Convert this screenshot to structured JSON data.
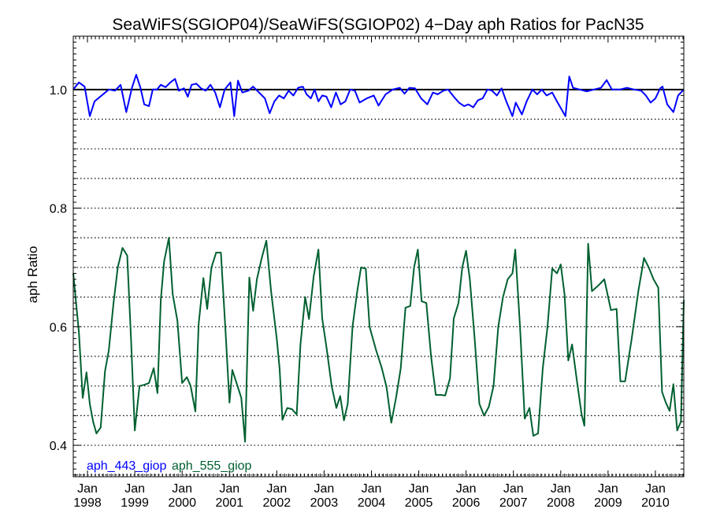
{
  "chart_data": {
    "type": "line",
    "title": "SeaWiFS(SGIOP04)/SeaWiFS(SGIOP02) 4−Day aph Ratios for PacN35",
    "xlabel": "",
    "ylabel": "aph Ratio",
    "xlim": [
      1997.7,
      2010.6
    ],
    "ylim": [
      0.347,
      1.09
    ],
    "y_ticks": [
      0.4,
      0.6,
      0.8,
      1.0
    ],
    "y_tick_labels": [
      "0.4",
      "0.6",
      "0.8",
      "1.0"
    ],
    "y_gridlines": [
      0.35,
      0.4,
      0.45,
      0.5,
      0.55,
      0.6,
      0.65,
      0.7,
      0.75,
      0.8,
      0.85,
      0.9,
      0.95
    ],
    "grid": "dotted horizontal",
    "reference_line": 1.0,
    "x_ticks": [
      {
        "x": 1998.0,
        "month": "Jan",
        "year": "1998"
      },
      {
        "x": 1999.0,
        "month": "Jan",
        "year": "1999"
      },
      {
        "x": 2000.0,
        "month": "Jan",
        "year": "2000"
      },
      {
        "x": 2001.0,
        "month": "Jan",
        "year": "2001"
      },
      {
        "x": 2002.0,
        "month": "Jan",
        "year": "2002"
      },
      {
        "x": 2003.0,
        "month": "Jan",
        "year": "2003"
      },
      {
        "x": 2004.0,
        "month": "Jan",
        "year": "2004"
      },
      {
        "x": 2005.0,
        "month": "Jan",
        "year": "2005"
      },
      {
        "x": 2006.0,
        "month": "Jan",
        "year": "2006"
      },
      {
        "x": 2007.0,
        "month": "Jan",
        "year": "2007"
      },
      {
        "x": 2008.0,
        "month": "Jan",
        "year": "2008"
      },
      {
        "x": 2009.0,
        "month": "Jan",
        "year": "2009"
      },
      {
        "x": 2010.0,
        "month": "Jan",
        "year": "2010"
      }
    ],
    "legend_placement": "bottom-left",
    "series": [
      {
        "name": "aph_443_giop",
        "color": "#0000ff",
        "points": [
          [
            1997.7,
            1.0
          ],
          [
            1997.82,
            1.012
          ],
          [
            1997.94,
            1.005
          ],
          [
            1998.05,
            0.955
          ],
          [
            1998.15,
            0.98
          ],
          [
            1998.3,
            0.99
          ],
          [
            1998.45,
            1.0
          ],
          [
            1998.58,
            0.998
          ],
          [
            1998.7,
            1.008
          ],
          [
            1998.82,
            0.962
          ],
          [
            1998.94,
            1.003
          ],
          [
            1999.03,
            1.025
          ],
          [
            1999.12,
            1.003
          ],
          [
            1999.2,
            0.975
          ],
          [
            1999.3,
            0.972
          ],
          [
            1999.38,
            1.0
          ],
          [
            1999.47,
            1.0
          ],
          [
            1999.55,
            1.008
          ],
          [
            1999.65,
            1.004
          ],
          [
            1999.75,
            1.012
          ],
          [
            1999.85,
            1.018
          ],
          [
            1999.93,
            0.998
          ],
          [
            2000.04,
            1.002
          ],
          [
            2000.12,
            0.988
          ],
          [
            2000.2,
            1.008
          ],
          [
            2000.3,
            1.01
          ],
          [
            2000.4,
            1.002
          ],
          [
            2000.5,
            0.998
          ],
          [
            2000.6,
            1.008
          ],
          [
            2000.7,
            0.995
          ],
          [
            2000.8,
            0.97
          ],
          [
            2000.9,
            1.0
          ],
          [
            2001.02,
            1.012
          ],
          [
            2001.1,
            0.955
          ],
          [
            2001.18,
            1.015
          ],
          [
            2001.27,
            0.995
          ],
          [
            2001.4,
            0.998
          ],
          [
            2001.5,
            1.005
          ],
          [
            2001.65,
            0.993
          ],
          [
            2001.75,
            0.985
          ],
          [
            2001.85,
            0.96
          ],
          [
            2001.95,
            0.98
          ],
          [
            2002.05,
            0.99
          ],
          [
            2002.15,
            0.985
          ],
          [
            2002.25,
            0.998
          ],
          [
            2002.35,
            0.99
          ],
          [
            2002.45,
            1.003
          ],
          [
            2002.55,
            1.005
          ],
          [
            2002.63,
            0.992
          ],
          [
            2002.72,
            0.985
          ],
          [
            2002.8,
            1.0
          ],
          [
            2002.88,
            0.98
          ],
          [
            2002.96,
            0.99
          ],
          [
            2003.05,
            0.988
          ],
          [
            2003.15,
            0.97
          ],
          [
            2003.25,
            0.995
          ],
          [
            2003.35,
            0.975
          ],
          [
            2003.45,
            0.98
          ],
          [
            2003.55,
            1.0
          ],
          [
            2003.65,
            0.998
          ],
          [
            2003.75,
            0.978
          ],
          [
            2003.9,
            0.985
          ],
          [
            2004.05,
            0.99
          ],
          [
            2004.15,
            0.973
          ],
          [
            2004.3,
            0.992
          ],
          [
            2004.45,
            1.0
          ],
          [
            2004.6,
            1.003
          ],
          [
            2004.7,
            0.993
          ],
          [
            2004.8,
            1.003
          ],
          [
            2004.92,
            1.002
          ],
          [
            2005.05,
            0.985
          ],
          [
            2005.18,
            0.975
          ],
          [
            2005.3,
            0.995
          ],
          [
            2005.4,
            0.992
          ],
          [
            2005.52,
            0.998
          ],
          [
            2005.62,
            1.0
          ],
          [
            2005.75,
            0.987
          ],
          [
            2005.85,
            0.978
          ],
          [
            2005.96,
            0.972
          ],
          [
            2006.05,
            0.975
          ],
          [
            2006.15,
            0.97
          ],
          [
            2006.25,
            0.982
          ],
          [
            2006.35,
            0.985
          ],
          [
            2006.45,
            1.0
          ],
          [
            2006.55,
            0.998
          ],
          [
            2006.65,
            0.99
          ],
          [
            2006.75,
            1.002
          ],
          [
            2006.85,
            0.98
          ],
          [
            2006.98,
            0.955
          ],
          [
            2007.05,
            0.978
          ],
          [
            2007.18,
            0.958
          ],
          [
            2007.28,
            0.98
          ],
          [
            2007.4,
            1.0
          ],
          [
            2007.5,
            0.992
          ],
          [
            2007.6,
            1.0
          ],
          [
            2007.7,
            0.99
          ],
          [
            2007.82,
            0.995
          ],
          [
            2007.92,
            0.98
          ],
          [
            2008.1,
            0.955
          ],
          [
            2008.18,
            1.022
          ],
          [
            2008.26,
            1.003
          ],
          [
            2008.4,
            1.0
          ],
          [
            2008.55,
            0.997
          ],
          [
            2008.7,
            1.0
          ],
          [
            2008.85,
            1.003
          ],
          [
            2008.97,
            1.016
          ],
          [
            2009.08,
            1.0
          ],
          [
            2009.25,
            1.0
          ],
          [
            2009.4,
            1.003
          ],
          [
            2009.55,
            1.0
          ],
          [
            2009.7,
            0.998
          ],
          [
            2009.8,
            0.99
          ],
          [
            2009.9,
            0.978
          ],
          [
            2010.0,
            0.985
          ],
          [
            2010.1,
            1.002
          ],
          [
            2010.15,
            1.005
          ],
          [
            2010.25,
            0.975
          ],
          [
            2010.38,
            0.962
          ],
          [
            2010.48,
            0.99
          ],
          [
            2010.6,
            1.0
          ]
        ]
      },
      {
        "name": "aph_555_giop",
        "color": "#006030",
        "points": [
          [
            1997.7,
            0.69
          ],
          [
            1997.82,
            0.59
          ],
          [
            1997.9,
            0.48
          ],
          [
            1997.98,
            0.523
          ],
          [
            1998.05,
            0.47
          ],
          [
            1998.12,
            0.44
          ],
          [
            1998.19,
            0.42
          ],
          [
            1998.28,
            0.43
          ],
          [
            1998.37,
            0.525
          ],
          [
            1998.45,
            0.56
          ],
          [
            1998.55,
            0.64
          ],
          [
            1998.64,
            0.7
          ],
          [
            1998.74,
            0.733
          ],
          [
            1998.84,
            0.72
          ],
          [
            1998.92,
            0.58
          ],
          [
            1999.0,
            0.425
          ],
          [
            1999.1,
            0.5
          ],
          [
            1999.2,
            0.502
          ],
          [
            1999.3,
            0.505
          ],
          [
            1999.4,
            0.53
          ],
          [
            1999.48,
            0.488
          ],
          [
            1999.55,
            0.645
          ],
          [
            1999.62,
            0.71
          ],
          [
            1999.72,
            0.75
          ],
          [
            1999.8,
            0.655
          ],
          [
            1999.9,
            0.61
          ],
          [
            2000.0,
            0.505
          ],
          [
            2000.1,
            0.515
          ],
          [
            2000.18,
            0.5
          ],
          [
            2000.28,
            0.457
          ],
          [
            2000.35,
            0.605
          ],
          [
            2000.45,
            0.682
          ],
          [
            2000.53,
            0.63
          ],
          [
            2000.62,
            0.7
          ],
          [
            2000.72,
            0.725
          ],
          [
            2000.82,
            0.725
          ],
          [
            2000.92,
            0.59
          ],
          [
            2001.0,
            0.472
          ],
          [
            2001.06,
            0.527
          ],
          [
            2001.15,
            0.505
          ],
          [
            2001.25,
            0.48
          ],
          [
            2001.33,
            0.406
          ],
          [
            2001.42,
            0.683
          ],
          [
            2001.5,
            0.627
          ],
          [
            2001.58,
            0.68
          ],
          [
            2001.68,
            0.715
          ],
          [
            2001.78,
            0.745
          ],
          [
            2001.88,
            0.66
          ],
          [
            2002.0,
            0.58
          ],
          [
            2002.06,
            0.53
          ],
          [
            2002.12,
            0.443
          ],
          [
            2002.22,
            0.463
          ],
          [
            2002.32,
            0.461
          ],
          [
            2002.42,
            0.452
          ],
          [
            2002.5,
            0.57
          ],
          [
            2002.6,
            0.65
          ],
          [
            2002.68,
            0.613
          ],
          [
            2002.78,
            0.685
          ],
          [
            2002.88,
            0.73
          ],
          [
            2002.96,
            0.614
          ],
          [
            2003.06,
            0.56
          ],
          [
            2003.16,
            0.5
          ],
          [
            2003.26,
            0.463
          ],
          [
            2003.34,
            0.483
          ],
          [
            2003.42,
            0.442
          ],
          [
            2003.5,
            0.47
          ],
          [
            2003.6,
            0.6
          ],
          [
            2003.7,
            0.66
          ],
          [
            2003.78,
            0.7
          ],
          [
            2003.88,
            0.698
          ],
          [
            2003.96,
            0.6
          ],
          [
            2004.1,
            0.56
          ],
          [
            2004.22,
            0.53
          ],
          [
            2004.32,
            0.498
          ],
          [
            2004.42,
            0.438
          ],
          [
            2004.52,
            0.48
          ],
          [
            2004.62,
            0.53
          ],
          [
            2004.72,
            0.632
          ],
          [
            2004.82,
            0.635
          ],
          [
            2004.9,
            0.7
          ],
          [
            2004.98,
            0.73
          ],
          [
            2005.06,
            0.643
          ],
          [
            2005.16,
            0.64
          ],
          [
            2005.26,
            0.55
          ],
          [
            2005.36,
            0.485
          ],
          [
            2005.46,
            0.485
          ],
          [
            2005.56,
            0.484
          ],
          [
            2005.66,
            0.513
          ],
          [
            2005.74,
            0.614
          ],
          [
            2005.84,
            0.64
          ],
          [
            2005.92,
            0.7
          ],
          [
            2006.0,
            0.728
          ],
          [
            2006.08,
            0.68
          ],
          [
            2006.18,
            0.58
          ],
          [
            2006.28,
            0.47
          ],
          [
            2006.38,
            0.45
          ],
          [
            2006.48,
            0.465
          ],
          [
            2006.58,
            0.5
          ],
          [
            2006.68,
            0.6
          ],
          [
            2006.78,
            0.65
          ],
          [
            2006.88,
            0.68
          ],
          [
            2006.98,
            0.69
          ],
          [
            2007.04,
            0.73
          ],
          [
            2007.14,
            0.6
          ],
          [
            2007.24,
            0.445
          ],
          [
            2007.34,
            0.463
          ],
          [
            2007.42,
            0.416
          ],
          [
            2007.52,
            0.42
          ],
          [
            2007.62,
            0.53
          ],
          [
            2007.72,
            0.6
          ],
          [
            2007.82,
            0.698
          ],
          [
            2007.92,
            0.69
          ],
          [
            2008.0,
            0.705
          ],
          [
            2008.08,
            0.655
          ],
          [
            2008.16,
            0.543
          ],
          [
            2008.24,
            0.57
          ],
          [
            2008.34,
            0.51
          ],
          [
            2008.44,
            0.453
          ],
          [
            2008.5,
            0.433
          ],
          [
            2008.58,
            0.74
          ],
          [
            2008.66,
            0.66
          ],
          [
            2008.8,
            0.67
          ],
          [
            2008.92,
            0.68
          ],
          [
            2009.06,
            0.628
          ],
          [
            2009.18,
            0.63
          ],
          [
            2009.26,
            0.508
          ],
          [
            2009.36,
            0.508
          ],
          [
            2009.5,
            0.58
          ],
          [
            2009.64,
            0.66
          ],
          [
            2009.76,
            0.716
          ],
          [
            2009.86,
            0.7
          ],
          [
            2009.96,
            0.68
          ],
          [
            2010.06,
            0.666
          ],
          [
            2010.14,
            0.49
          ],
          [
            2010.22,
            0.472
          ],
          [
            2010.3,
            0.458
          ],
          [
            2010.38,
            0.503
          ],
          [
            2010.46,
            0.425
          ],
          [
            2010.54,
            0.44
          ],
          [
            2010.6,
            0.645
          ]
        ]
      }
    ]
  }
}
